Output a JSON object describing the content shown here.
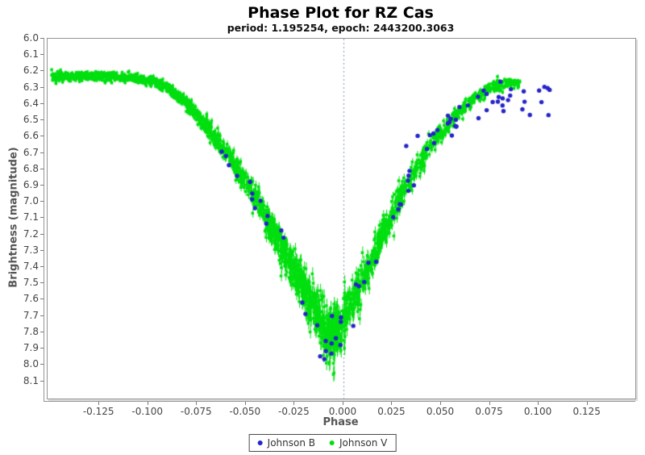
{
  "colors": {
    "background": "#ffffff",
    "plot_border": "#949494",
    "tick_label": "#444444",
    "axis_title": "#555555",
    "title": "#000000",
    "legend_border": "#4a4a4a",
    "legend_text": "#333333",
    "zero_line": "#8a93c4",
    "johnson_b": "#2424c8",
    "johnson_v": "#00df10"
  },
  "chart_data": {
    "type": "scatter",
    "title": "Phase Plot for RZ Cas",
    "subtitle": "period: 1.195254, epoch: 2443200.3063",
    "xlabel": "Phase",
    "ylabel": "Brightness (magnitude)",
    "xlim": [
      -0.1515,
      0.1495
    ],
    "ylim": [
      6.0,
      8.206
    ],
    "y_axis_inverted": true,
    "grid": false,
    "legend_position": "bottom-center",
    "zero_line": {
      "phase": 0.0,
      "style": "dashed",
      "color": "#8a93c4"
    },
    "x_ticks": [
      {
        "value": -0.125,
        "label": "-0.125"
      },
      {
        "value": -0.1,
        "label": "-0.100"
      },
      {
        "value": -0.075,
        "label": "-0.075"
      },
      {
        "value": -0.05,
        "label": "-0.050"
      },
      {
        "value": -0.025,
        "label": "-0.025"
      },
      {
        "value": 0.0,
        "label": "0.000"
      },
      {
        "value": 0.025,
        "label": "0.025"
      },
      {
        "value": 0.05,
        "label": "0.050"
      },
      {
        "value": 0.075,
        "label": "0.075"
      },
      {
        "value": 0.1,
        "label": "0.100"
      },
      {
        "value": 0.125,
        "label": "0.125"
      }
    ],
    "y_ticks": [
      {
        "value": 6.0,
        "label": "6.0"
      },
      {
        "value": 6.1,
        "label": "6.1"
      },
      {
        "value": 6.2,
        "label": "6.2"
      },
      {
        "value": 6.3,
        "label": "6.3"
      },
      {
        "value": 6.4,
        "label": "6.4"
      },
      {
        "value": 6.5,
        "label": "6.5"
      },
      {
        "value": 6.6,
        "label": "6.6"
      },
      {
        "value": 6.7,
        "label": "6.7"
      },
      {
        "value": 6.8,
        "label": "6.8"
      },
      {
        "value": 6.9,
        "label": "6.9"
      },
      {
        "value": 7.0,
        "label": "7.0"
      },
      {
        "value": 7.1,
        "label": "7.1"
      },
      {
        "value": 7.2,
        "label": "7.2"
      },
      {
        "value": 7.3,
        "label": "7.3"
      },
      {
        "value": 7.4,
        "label": "7.4"
      },
      {
        "value": 7.5,
        "label": "7.5"
      },
      {
        "value": 7.6,
        "label": "7.6"
      },
      {
        "value": 7.7,
        "label": "7.7"
      },
      {
        "value": 7.8,
        "label": "7.8"
      },
      {
        "value": 7.9,
        "label": "7.9"
      },
      {
        "value": 8.0,
        "label": "8.0"
      },
      {
        "value": 8.1,
        "label": "8.1"
      }
    ],
    "series": [
      {
        "name": "Johnson B",
        "marker": "circle",
        "color": "#2424c8",
        "marker_size": 5,
        "error_bars": false,
        "seed": 11,
        "noise_base": 0.055,
        "noise_slope": 0.012,
        "segments": [
          {
            "range": [
              -0.066,
              -0.02
            ],
            "n": 14
          },
          {
            "range": [
              -0.02,
              0.002
            ],
            "n": 13
          },
          {
            "range": [
              0.002,
              0.05
            ],
            "n": 22
          },
          {
            "range": [
              0.05,
              0.106
            ],
            "n": 36
          }
        ],
        "mean_curve": [
          [
            -0.066,
            6.7
          ],
          [
            -0.055,
            6.84
          ],
          [
            -0.045,
            7.0
          ],
          [
            -0.035,
            7.2
          ],
          [
            -0.028,
            7.35
          ],
          [
            -0.02,
            7.58
          ],
          [
            -0.012,
            7.85
          ],
          [
            -0.006,
            7.88
          ],
          [
            0.0,
            7.74
          ],
          [
            0.008,
            7.52
          ],
          [
            0.015,
            7.34
          ],
          [
            0.022,
            7.14
          ],
          [
            0.03,
            6.94
          ],
          [
            0.038,
            6.78
          ],
          [
            0.046,
            6.64
          ],
          [
            0.054,
            6.52
          ],
          [
            0.062,
            6.44
          ],
          [
            0.07,
            6.39
          ],
          [
            0.078,
            6.36
          ],
          [
            0.086,
            6.35
          ],
          [
            0.094,
            6.36
          ],
          [
            0.106,
            6.39
          ]
        ]
      },
      {
        "name": "Johnson V",
        "marker": "square",
        "color": "#00df10",
        "marker_size": 3.5,
        "error_bars": true,
        "err_base": 0.012,
        "err_slope": 0.02,
        "seed": 3,
        "noise_base": 0.013,
        "noise_slope": 0.038,
        "segments": [
          {
            "range": [
              -0.1495,
              -0.095
            ],
            "n": 520
          },
          {
            "range": [
              -0.095,
              -0.04
            ],
            "n": 620
          },
          {
            "range": [
              -0.04,
              -0.002
            ],
            "n": 720
          },
          {
            "range": [
              -0.002,
              0.032
            ],
            "n": 420
          },
          {
            "range": [
              0.032,
              0.0905
            ],
            "n": 420
          }
        ],
        "mean_curve": [
          [
            -0.1515,
            6.235
          ],
          [
            -0.125,
            6.23
          ],
          [
            -0.105,
            6.245
          ],
          [
            -0.095,
            6.27
          ],
          [
            -0.085,
            6.34
          ],
          [
            -0.075,
            6.47
          ],
          [
            -0.065,
            6.62
          ],
          [
            -0.055,
            6.78
          ],
          [
            -0.045,
            6.98
          ],
          [
            -0.035,
            7.2
          ],
          [
            -0.025,
            7.43
          ],
          [
            -0.018,
            7.58
          ],
          [
            -0.012,
            7.72
          ],
          [
            -0.007,
            7.82
          ],
          [
            -0.003,
            7.8
          ],
          [
            0.0,
            7.72
          ],
          [
            0.004,
            7.62
          ],
          [
            0.01,
            7.48
          ],
          [
            0.016,
            7.32
          ],
          [
            0.022,
            7.15
          ],
          [
            0.03,
            6.95
          ],
          [
            0.038,
            6.78
          ],
          [
            0.046,
            6.63
          ],
          [
            0.054,
            6.51
          ],
          [
            0.062,
            6.42
          ],
          [
            0.07,
            6.34
          ],
          [
            0.078,
            6.29
          ],
          [
            0.085,
            6.27
          ],
          [
            0.0905,
            6.28
          ]
        ]
      }
    ]
  }
}
